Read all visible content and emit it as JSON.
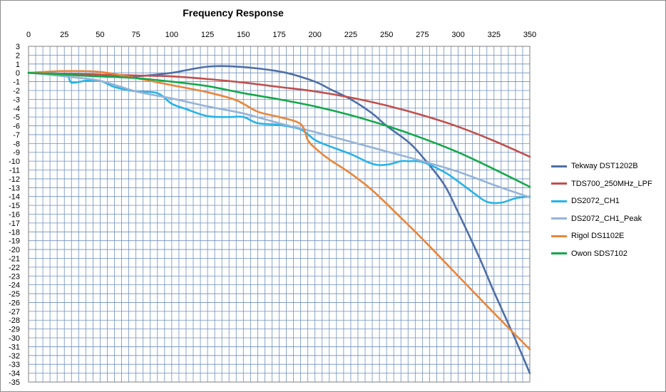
{
  "chart_data": {
    "type": "line",
    "title": "Frequency Response",
    "xlabel": "",
    "ylabel": "",
    "xlim": [
      0,
      350
    ],
    "ylim": [
      -35,
      3
    ],
    "x_ticks": [
      0,
      25,
      50,
      75,
      100,
      125,
      150,
      175,
      200,
      225,
      250,
      275,
      300,
      325,
      350
    ],
    "y_ticks": [
      3,
      2,
      1,
      0,
      -1,
      -2,
      -3,
      -4,
      -5,
      -6,
      -7,
      -8,
      -9,
      -10,
      -11,
      -12,
      -13,
      -14,
      -15,
      -16,
      -17,
      -18,
      -19,
      -20,
      -21,
      -22,
      -23,
      -24,
      -25,
      -26,
      -27,
      -28,
      -29,
      -30,
      -31,
      -32,
      -33,
      -34,
      -35
    ],
    "x_axis_position": "top",
    "grid": true,
    "grid_minor_x_step": 5,
    "legend_position": "right",
    "series": [
      {
        "name": "Tekway DST1202B",
        "color": "#4f6fa6",
        "x": [
          0,
          25,
          50,
          75,
          100,
          110,
          125,
          140,
          160,
          180,
          200,
          210,
          225,
          240,
          250,
          265,
          275,
          290,
          300,
          315,
          325,
          340,
          350
        ],
        "y": [
          0,
          -0.2,
          -0.4,
          -0.4,
          0,
          0.3,
          0.7,
          0.75,
          0.5,
          0,
          -1,
          -1.8,
          -3,
          -4.6,
          -6,
          -7.8,
          -9.5,
          -12.6,
          -15.8,
          -21,
          -24.8,
          -30.2,
          -34
        ]
      },
      {
        "name": "TDS700_250MHz_LPF",
        "color": "#c0504d",
        "x": [
          0,
          25,
          50,
          75,
          100,
          125,
          150,
          175,
          200,
          225,
          250,
          275,
          300,
          325,
          350
        ],
        "y": [
          0,
          -0.1,
          -0.2,
          -0.3,
          -0.4,
          -0.7,
          -1.1,
          -1.6,
          -2.1,
          -2.8,
          -3.7,
          -4.8,
          -6.1,
          -7.7,
          -9.5
        ]
      },
      {
        "name": "DS2072_CH1",
        "color": "#27b3e6",
        "x": [
          0,
          25,
          30,
          40,
          50,
          60,
          75,
          90,
          100,
          110,
          125,
          140,
          150,
          160,
          175,
          190,
          200,
          210,
          225,
          240,
          250,
          260,
          265,
          275,
          290,
          300,
          310,
          320,
          330,
          340,
          350
        ],
        "y": [
          0,
          -0.2,
          -1.1,
          -0.9,
          -0.9,
          -1.6,
          -2.1,
          -2.3,
          -3.5,
          -4.1,
          -4.9,
          -5,
          -5,
          -5.7,
          -5.9,
          -6.4,
          -7.6,
          -8.3,
          -9.2,
          -10.3,
          -10.4,
          -10,
          -10,
          -10.1,
          -11.2,
          -12.3,
          -13.5,
          -14.6,
          -14.7,
          -14.2,
          -14
        ]
      },
      {
        "name": "DS2072_CH1_Peak",
        "color": "#95b3d7",
        "x": [
          0,
          25,
          50,
          75,
          100,
          125,
          150,
          175,
          200,
          225,
          250,
          275,
          300,
          325,
          350
        ],
        "y": [
          0,
          -0.4,
          -0.9,
          -2.1,
          -2.9,
          -3.8,
          -4.6,
          -5.7,
          -6.7,
          -7.8,
          -8.9,
          -10,
          -11.2,
          -12.7,
          -14.1
        ]
      },
      {
        "name": "Rigol DS1102E",
        "color": "#e8863a",
        "x": [
          0,
          25,
          50,
          75,
          100,
          125,
          145,
          160,
          175,
          190,
          195,
          200,
          210,
          225,
          240,
          260,
          275,
          300,
          325,
          350
        ],
        "y": [
          0,
          0.2,
          0.1,
          -0.6,
          -1.4,
          -2.2,
          -3.1,
          -4.4,
          -5,
          -5.8,
          -7.6,
          -8.5,
          -9.8,
          -11.4,
          -13.3,
          -16.4,
          -18.8,
          -23,
          -27.2,
          -31.3
        ]
      },
      {
        "name": "Owon SDS7102",
        "color": "#14a84a",
        "x": [
          0,
          25,
          50,
          75,
          100,
          125,
          150,
          175,
          200,
          225,
          250,
          275,
          300,
          325,
          350
        ],
        "y": [
          0,
          -0.2,
          -0.4,
          -0.6,
          -1,
          -1.5,
          -2.3,
          -3,
          -3.8,
          -4.8,
          -6,
          -7.4,
          -9,
          -10.9,
          -12.9
        ]
      }
    ]
  }
}
